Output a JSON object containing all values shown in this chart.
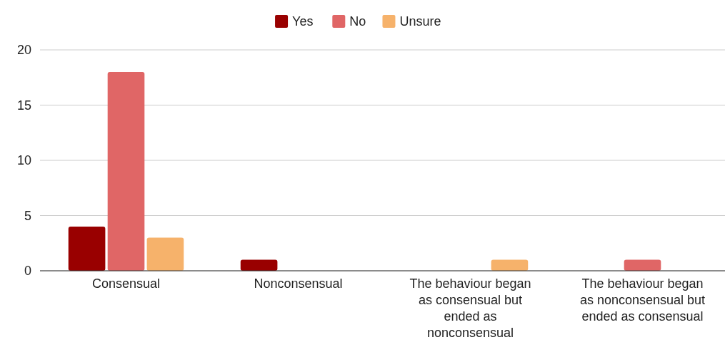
{
  "chart_data": {
    "type": "bar",
    "categories": [
      "Consensual",
      "Nonconsensual",
      "The behaviour began as consensual but ended as nonconsensual",
      "The behaviour began as nonconsensual but ended as consensual"
    ],
    "series": [
      {
        "name": "Yes",
        "color": "#990000",
        "values": [
          4,
          1,
          0,
          0
        ]
      },
      {
        "name": "No",
        "color": "#e06666",
        "values": [
          18,
          0,
          0,
          1
        ]
      },
      {
        "name": "Unsure",
        "color": "#f6b26b",
        "values": [
          3,
          0,
          1,
          0
        ]
      }
    ],
    "ylim": [
      0,
      20
    ],
    "yticks": [
      0,
      5,
      10,
      15,
      20
    ],
    "grid": "y",
    "legend": "top"
  }
}
